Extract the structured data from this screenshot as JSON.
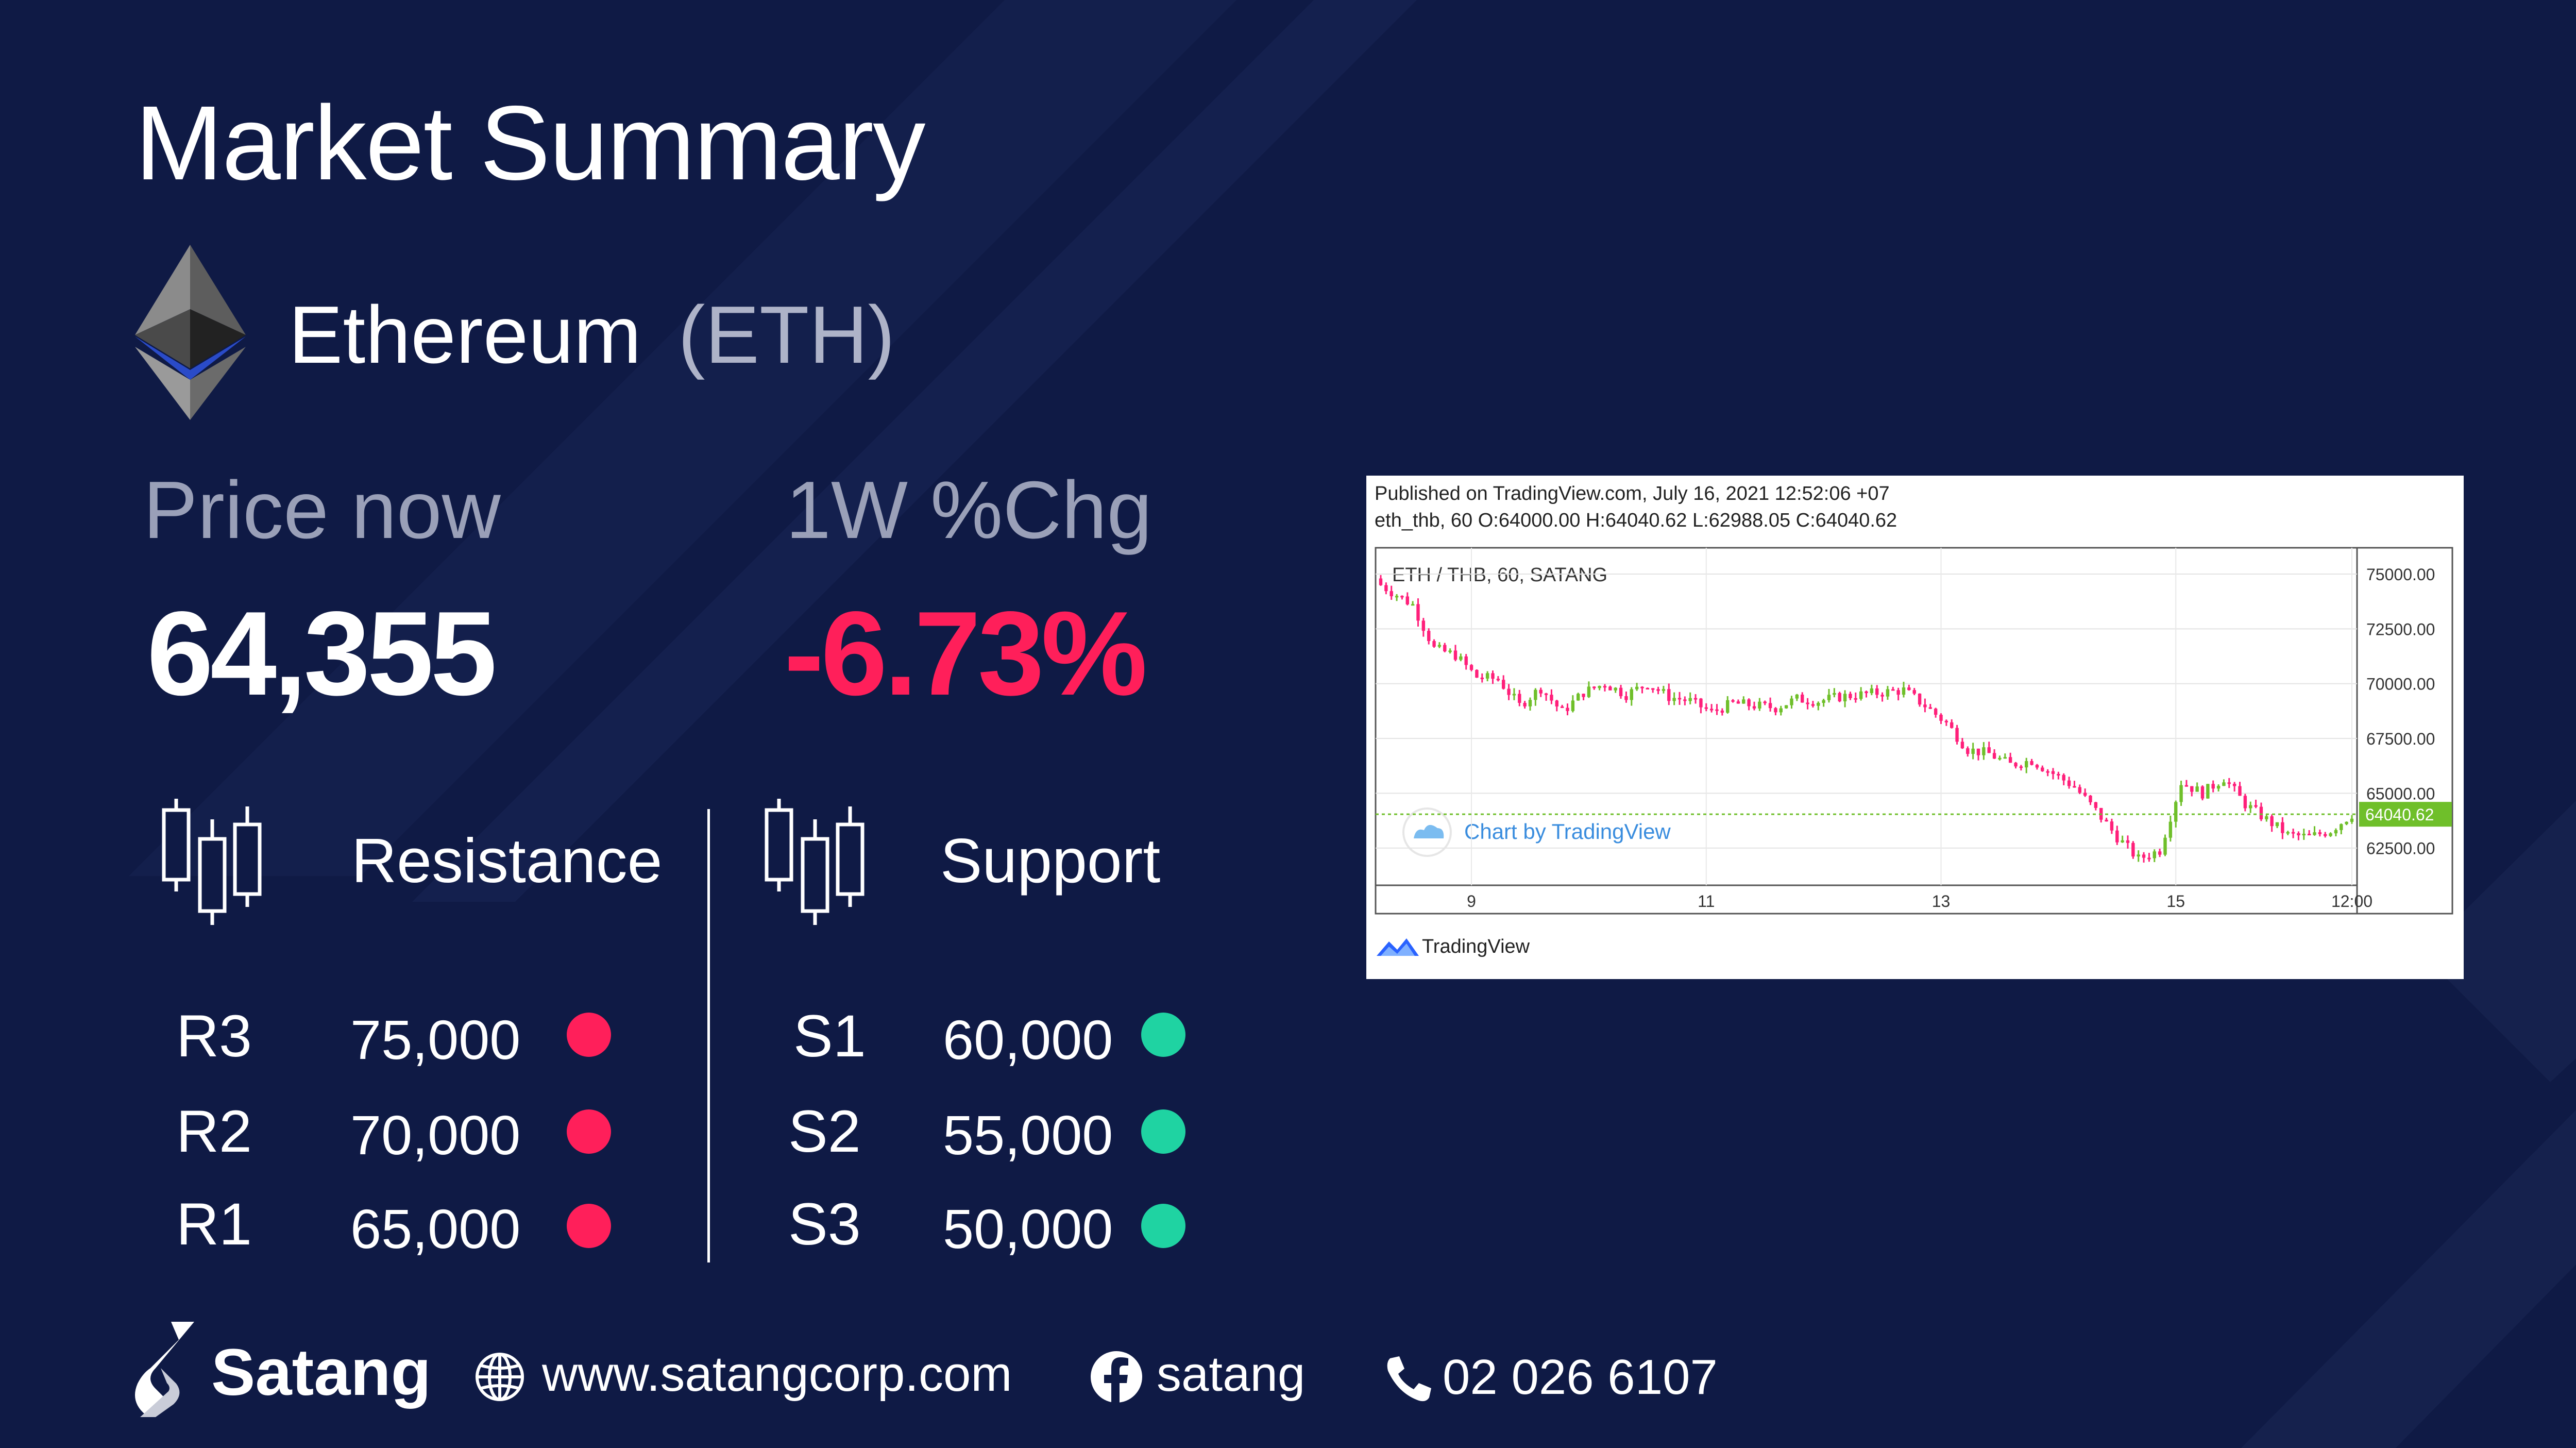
{
  "title": "Market Summary",
  "coin": {
    "name": "Ethereum",
    "symbol": "(ETH)"
  },
  "price": {
    "label": "Price now",
    "value": "64,355"
  },
  "change": {
    "label": "1W %Chg",
    "value": "-6.73%",
    "color": "#ff1f5a"
  },
  "resistance": {
    "title": "Resistance",
    "levels": [
      {
        "name": "R3",
        "value": "75,000"
      },
      {
        "name": "R2",
        "value": "70,000"
      },
      {
        "name": "R1",
        "value": "65,000"
      }
    ],
    "dot_color": "#ff1f5a"
  },
  "support": {
    "title": "Support",
    "levels": [
      {
        "name": "S1",
        "value": "60,000"
      },
      {
        "name": "S2",
        "value": "55,000"
      },
      {
        "name": "S3",
        "value": "50,000"
      }
    ],
    "dot_color": "#1fd3a2"
  },
  "chart_header": {
    "published": "Published on TradingView.com, July 16, 2021 12:52:06 +07",
    "ohlc": "eth_thb, 60 O:64000.00 H:64040.62 L:62988.05 C:64040.62"
  },
  "chart_data": {
    "type": "candlestick",
    "title": "ETH / THB, 60, SATANG",
    "watermark": "Chart by TradingView",
    "x_ticks": [
      "9",
      "11",
      "13",
      "15",
      "12:00"
    ],
    "y_ticks": [
      "75000.00",
      "72500.00",
      "70000.00",
      "67500.00",
      "65000.00",
      "62500.00"
    ],
    "ylim": [
      60800,
      76200
    ],
    "last_price": "64040.62",
    "last_price_value": 64040.62,
    "up_color": "#6fbf2a",
    "down_color": "#ff1f7a",
    "close_path": [
      [
        0,
        74500
      ],
      [
        6,
        73600
      ],
      [
        10,
        71600
      ],
      [
        14,
        71300
      ],
      [
        18,
        70300
      ],
      [
        22,
        70200
      ],
      [
        26,
        69000
      ],
      [
        30,
        69800
      ],
      [
        34,
        68700
      ],
      [
        38,
        69600
      ],
      [
        42,
        70000
      ],
      [
        46,
        69500
      ],
      [
        50,
        70000
      ],
      [
        54,
        69400
      ],
      [
        58,
        69200
      ],
      [
        62,
        68700
      ],
      [
        66,
        69100
      ],
      [
        70,
        69000
      ],
      [
        74,
        68900
      ],
      [
        78,
        69300
      ],
      [
        82,
        69200
      ],
      [
        86,
        69400
      ],
      [
        90,
        69500
      ],
      [
        94,
        69600
      ],
      [
        98,
        69700
      ],
      [
        102,
        69000
      ],
      [
        106,
        68200
      ],
      [
        110,
        67000
      ],
      [
        114,
        66800
      ],
      [
        118,
        66300
      ],
      [
        122,
        66500
      ],
      [
        126,
        65900
      ],
      [
        130,
        65300
      ],
      [
        134,
        64200
      ],
      [
        138,
        63000
      ],
      [
        142,
        62000
      ],
      [
        146,
        62400
      ],
      [
        150,
        65500
      ],
      [
        154,
        65000
      ],
      [
        158,
        65700
      ],
      [
        162,
        64500
      ],
      [
        166,
        63800
      ],
      [
        170,
        63100
      ],
      [
        174,
        63000
      ],
      [
        178,
        63300
      ],
      [
        182,
        64040.62
      ]
    ],
    "x_max": 182,
    "x_tick_pos": [
      17,
      61,
      105,
      149,
      182
    ]
  },
  "footer": {
    "brand": "Satang",
    "website": "www.satangcorp.com",
    "facebook": "satang",
    "phone": "02 026 6107"
  },
  "footer_icons": [
    "globe-icon",
    "facebook-icon",
    "phone-icon"
  ],
  "tv_footer": "TradingView"
}
